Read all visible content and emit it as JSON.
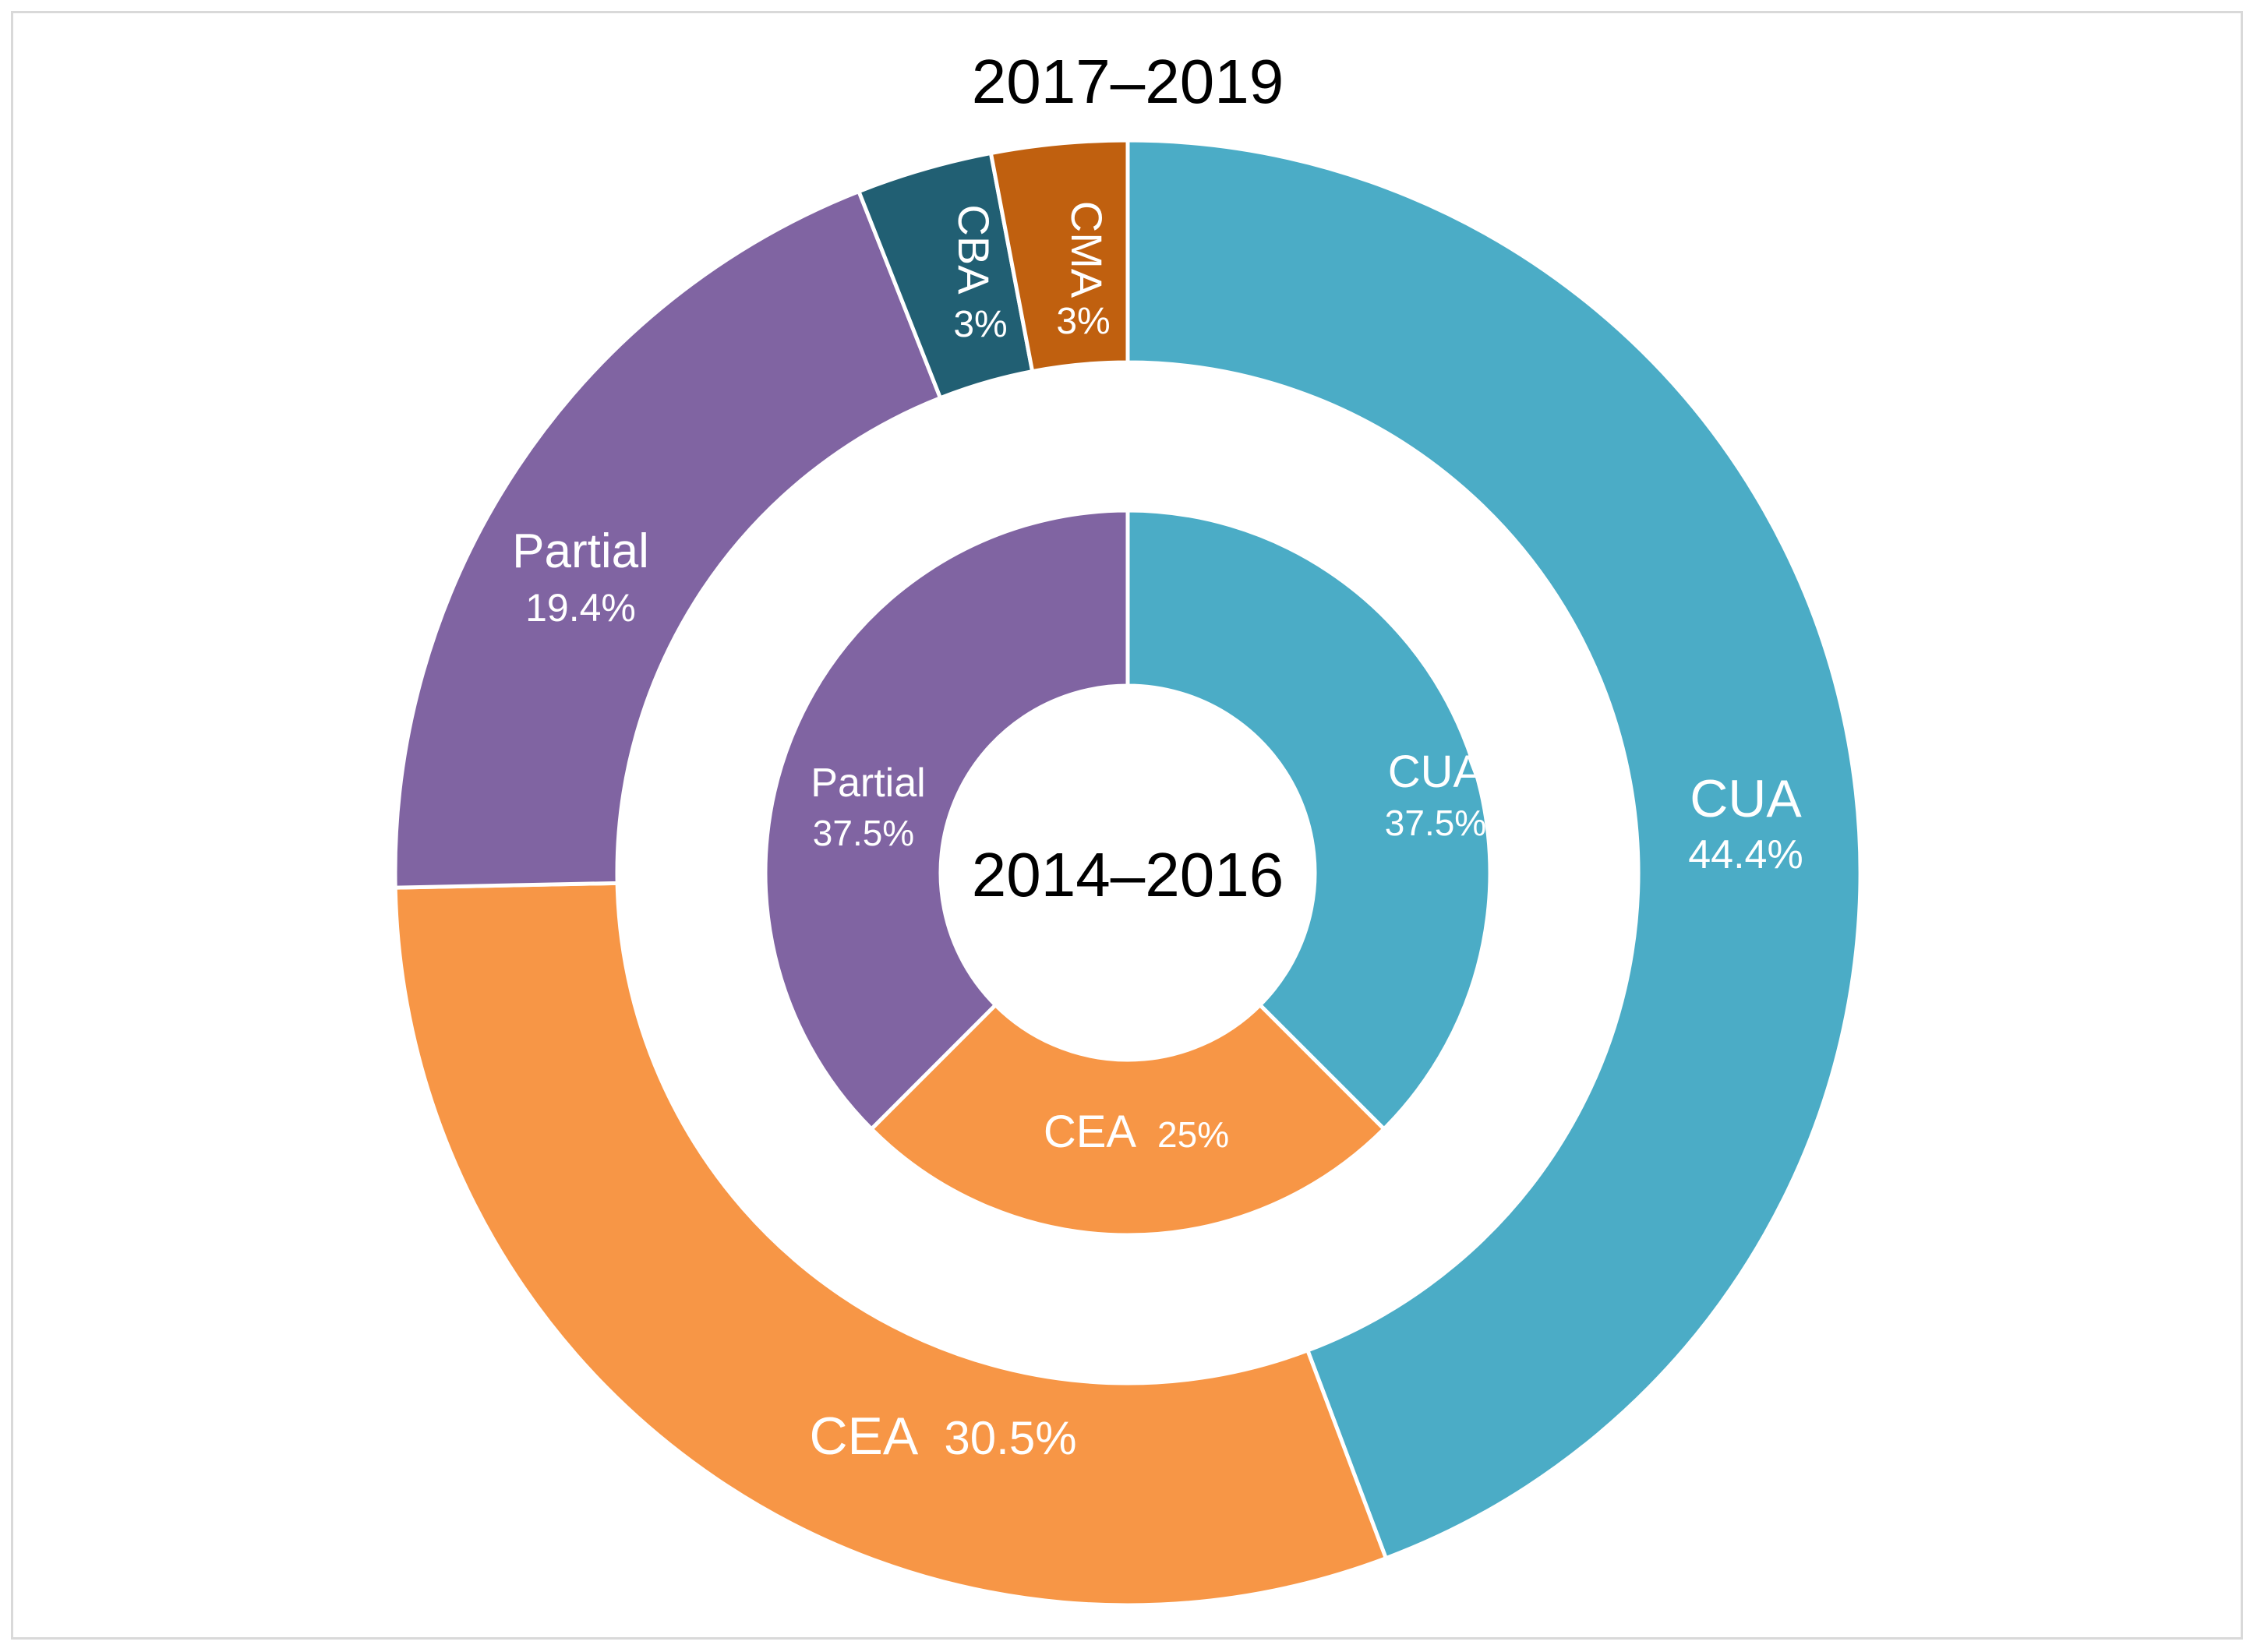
{
  "chart_data": {
    "type": "pie",
    "subtype": "nested-donut",
    "rings": [
      {
        "name": "2017–2019",
        "title": "2017–2019",
        "position": "outer",
        "categories": [
          "CUA",
          "CEA",
          "Partial",
          "CBA",
          "CMA"
        ],
        "values": [
          44.4,
          30.5,
          19.4,
          3,
          3
        ],
        "labels": [
          {
            "name": "CUA",
            "value": "44.4%"
          },
          {
            "name": "CEA",
            "value": "30.5%"
          },
          {
            "name": "Partial",
            "value": "19.4%"
          },
          {
            "name": "CBA",
            "value": "3%"
          },
          {
            "name": "CMA",
            "value": "3%"
          }
        ]
      },
      {
        "name": "2014–2016",
        "title": "2014–2016",
        "position": "inner",
        "categories": [
          "CUA",
          "CEA",
          "Partial"
        ],
        "values": [
          37.5,
          25,
          37.5
        ],
        "labels": [
          {
            "name": "CUA",
            "value": "37.5%"
          },
          {
            "name": "CEA",
            "value": "25%"
          },
          {
            "name": "Partial",
            "value": "37.5%"
          }
        ]
      }
    ],
    "colors": {
      "CUA": "#4bacc6",
      "CEA": "#f79646",
      "Partial": "#8064a2",
      "CBA": "#215f73",
      "CMA": "#c0600f"
    }
  }
}
